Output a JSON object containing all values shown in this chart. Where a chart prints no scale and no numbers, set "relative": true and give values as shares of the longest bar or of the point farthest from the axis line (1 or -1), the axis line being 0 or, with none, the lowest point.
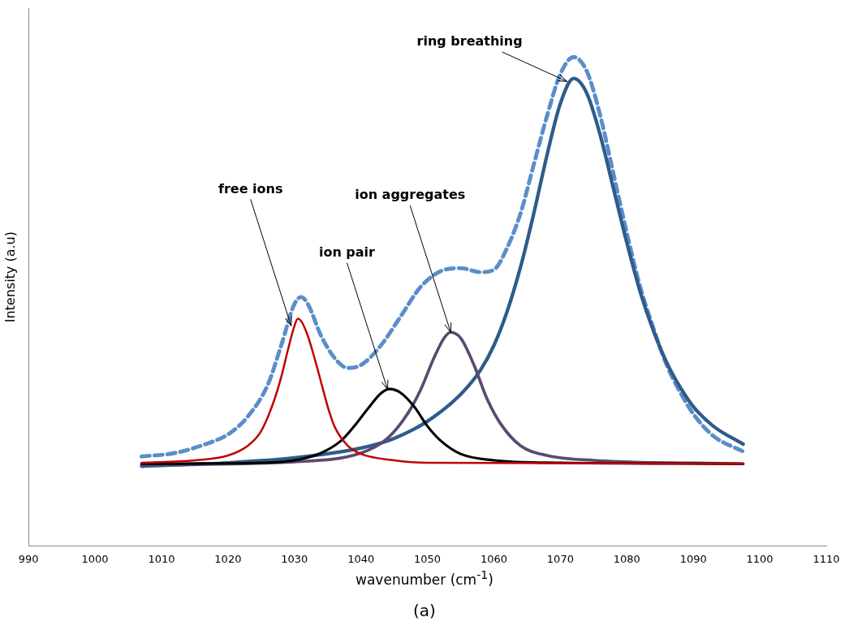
{
  "chart_data": {
    "type": "line",
    "relative": true,
    "xlabel": "wavenumber (cm$^{-1}$)",
    "ylabel": "Intensity (a.u)",
    "xlim": [
      990,
      1110
    ],
    "xticks": [
      990,
      1000,
      1010,
      1020,
      1030,
      1040,
      1050,
      1060,
      1070,
      1080,
      1090,
      1100,
      1110
    ],
    "grid": false,
    "legend": false,
    "marker": "none",
    "annotations": [
      {
        "text": "free ions",
        "x": 1029.5,
        "y": 0.45
      },
      {
        "text": "ion pair",
        "x": 1044,
        "y": 0.32
      },
      {
        "text": "ion aggregates",
        "x": 1053.5,
        "y": 0.437
      },
      {
        "text": "ring breathing",
        "x": 1071,
        "y": 0.95
      },
      "(a)"
    ],
    "series": [
      {
        "color": "#c00000",
        "line_style": "solid",
        "x": [
          1007,
          1015,
          1020,
          1023,
          1025,
          1027,
          1028,
          1029,
          1030,
          1030.5,
          1031,
          1032,
          1033,
          1034,
          1035,
          1036,
          1038,
          1040,
          1045,
          1050,
          1097.5
        ],
        "values": [
          0.17,
          0.175,
          0.185,
          0.205,
          0.235,
          0.3,
          0.345,
          0.4,
          0.45,
          0.465,
          0.46,
          0.43,
          0.385,
          0.335,
          0.285,
          0.245,
          0.205,
          0.188,
          0.175,
          0.17,
          0.168
        ]
      },
      {
        "color": "#000000",
        "line_style": "solid",
        "x": [
          1007,
          1025,
          1030,
          1034,
          1037,
          1039,
          1041,
          1043,
          1044.3,
          1046,
          1048,
          1050,
          1052,
          1055,
          1060,
          1070,
          1097.5
        ],
        "values": [
          0.168,
          0.17,
          0.175,
          0.19,
          0.215,
          0.245,
          0.28,
          0.312,
          0.321,
          0.313,
          0.285,
          0.245,
          0.215,
          0.188,
          0.175,
          0.17,
          0.168
        ]
      },
      {
        "color": "#5b4a6e",
        "line_style": "solid",
        "x": [
          1007,
          1030,
          1040,
          1044,
          1047,
          1049,
          1051,
          1052.5,
          1053.5,
          1055,
          1057,
          1059,
          1061,
          1064,
          1068,
          1075,
          1097.5
        ],
        "values": [
          0.166,
          0.172,
          0.19,
          0.22,
          0.27,
          0.32,
          0.385,
          0.425,
          0.437,
          0.425,
          0.37,
          0.3,
          0.25,
          0.205,
          0.185,
          0.175,
          0.168
        ]
      },
      {
        "color": "#2e5c8a",
        "line_style": "solid",
        "x": [
          1007,
          1020,
          1030,
          1040,
          1045,
          1050,
          1055,
          1058,
          1060,
          1062,
          1064,
          1066,
          1068,
          1070,
          1072,
          1074,
          1076,
          1078,
          1080,
          1082,
          1084,
          1086,
          1088,
          1090,
          1093,
          1097.5
        ],
        "values": [
          0.163,
          0.17,
          0.18,
          0.2,
          0.22,
          0.255,
          0.31,
          0.36,
          0.41,
          0.48,
          0.57,
          0.68,
          0.8,
          0.905,
          0.956,
          0.925,
          0.84,
          0.73,
          0.62,
          0.52,
          0.44,
          0.375,
          0.325,
          0.285,
          0.245,
          0.208
        ]
      },
      {
        "color": "#5b8ec9",
        "line_style": "dashed",
        "x": [
          1007,
          1012,
          1017,
          1020,
          1023,
          1026,
          1028,
          1030,
          1031,
          1032,
          1034,
          1036,
          1038,
          1040,
          1043,
          1046,
          1049,
          1052,
          1055,
          1058,
          1060,
          1062,
          1064,
          1066,
          1068,
          1070,
          1072,
          1074,
          1076,
          1078,
          1080,
          1082,
          1084,
          1086,
          1088,
          1090,
          1093,
          1097.5
        ],
        "values": [
          0.183,
          0.19,
          0.21,
          0.228,
          0.265,
          0.33,
          0.41,
          0.495,
          0.509,
          0.495,
          0.43,
          0.385,
          0.364,
          0.37,
          0.41,
          0.47,
          0.53,
          0.562,
          0.568,
          0.56,
          0.565,
          0.61,
          0.68,
          0.78,
          0.88,
          0.965,
          1.0,
          0.97,
          0.88,
          0.76,
          0.64,
          0.53,
          0.445,
          0.37,
          0.315,
          0.27,
          0.225,
          0.193
        ]
      }
    ]
  }
}
